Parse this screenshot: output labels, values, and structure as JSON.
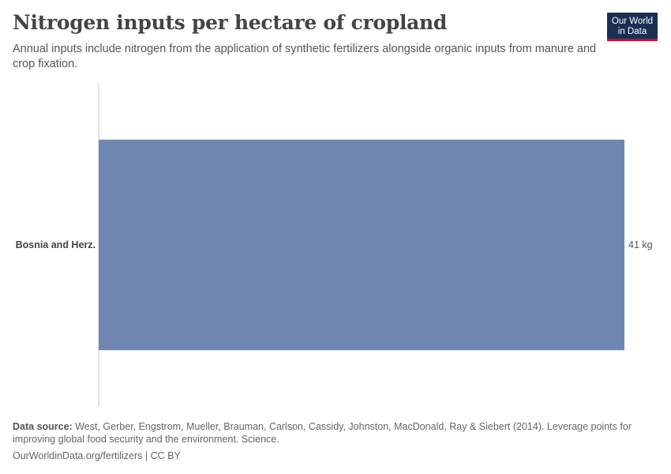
{
  "header": {
    "title": "Nitrogen inputs per hectare of cropland",
    "subtitle": "Annual inputs include nitrogen from the application of synthetic fertilizers alongside organic inputs from manure and crop fixation."
  },
  "logo": {
    "line1": "Our World",
    "line2": "in Data",
    "bg_color": "#1a2e54",
    "accent_color": "#c8102e"
  },
  "chart_data": {
    "type": "bar",
    "orientation": "horizontal",
    "categories": [
      "Bosnia and Herz."
    ],
    "values": [
      41
    ],
    "value_labels": [
      "41 kg"
    ],
    "unit": "kg",
    "xlim": [
      0,
      41
    ],
    "bar_color": "#6f87b0",
    "grid": false
  },
  "footer": {
    "source_label": "Data source:",
    "source_text": "West, Gerber, Engstrom, Mueller, Brauman, Carlson, Cassidy, Johnston, MacDonald, Ray & Siebert (2014). Leverage points for improving global food security and the environment. Science.",
    "url_text": "OurWorldinData.org/fertilizers | CC BY"
  }
}
